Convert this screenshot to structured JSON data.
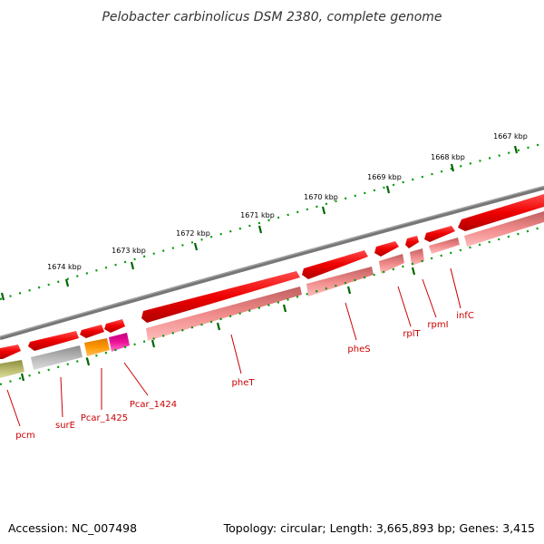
{
  "title": "Pelobacter carbinolicus DSM 2380, complete genome",
  "footer": {
    "accession": "Accession: NC_007498",
    "summary": "Topology: circular; Length: 3,665,893 bp; Genes: 3,415"
  },
  "colors": {
    "backbone": "#777777",
    "tick_major": "#006600",
    "tick_minor": "#009900",
    "label_line": "#cc0000",
    "label_text": "#cc0000"
  },
  "kbp_labels": [
    "1667 kbp",
    "1668 kbp",
    "1669 kbp",
    "1670 kbp",
    "1671 kbp",
    "1672 kbp",
    "1673 kbp",
    "1674 kbp"
  ],
  "genes": [
    {
      "name": "inf​C",
      "label": "infC"
    },
    {
      "name": "rpmI",
      "label": "rpmI"
    },
    {
      "name": "rplT",
      "label": "rplT"
    },
    {
      "name": "pheS",
      "label": "pheS"
    },
    {
      "name": "pheT",
      "label": "pheT"
    },
    {
      "name": "Pcar_1424",
      "label": "Pcar_1424"
    },
    {
      "name": "Pcar_1425",
      "label": "Pcar_1425"
    },
    {
      "name": "surE",
      "label": "surE"
    },
    {
      "name": "pcm",
      "label": "pcm"
    }
  ],
  "cds_colors": {
    "forward": "#ee0000",
    "reverse_pink": "#f08a8a",
    "grey": "#b4b4b4",
    "orange": "#ff9900",
    "magenta": "#ee1199",
    "olive": "#b8b86a"
  }
}
